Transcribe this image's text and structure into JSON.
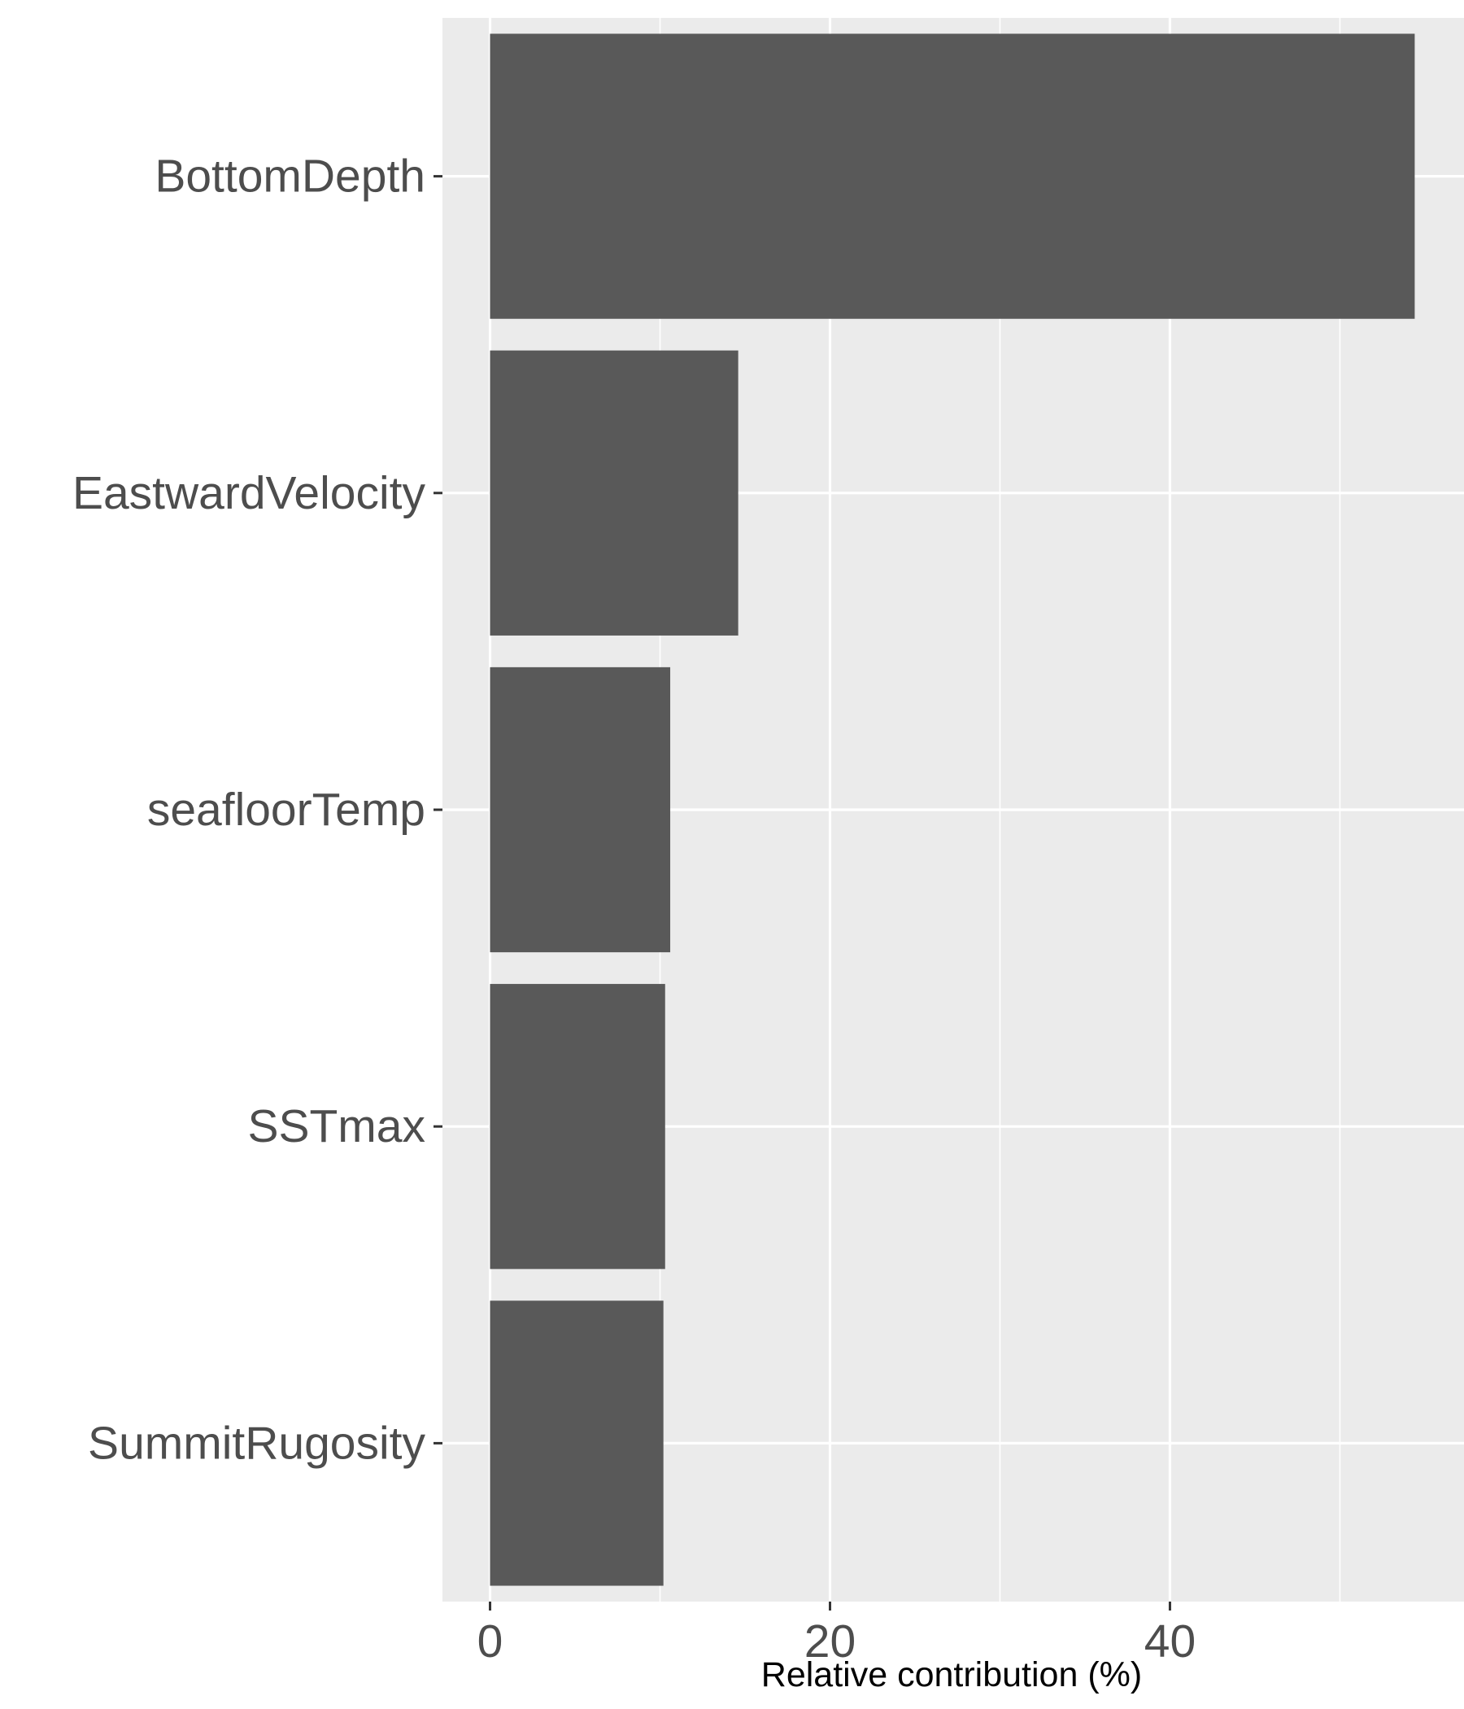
{
  "chart_data": {
    "type": "bar",
    "orientation": "horizontal",
    "title": "",
    "xlabel": "Relative contribution (%)",
    "ylabel": "",
    "categories": [
      "BottomDepth",
      "EastwardVelocity",
      "seafloorTemp",
      "SSTmax",
      "SummitRugosity"
    ],
    "values": [
      54.4,
      14.6,
      10.6,
      10.3,
      10.2
    ],
    "xlim": [
      -2.8,
      57.3
    ],
    "x_ticks": [
      0,
      20,
      40
    ],
    "x_tick_labels": [
      "0",
      "20",
      "40"
    ],
    "x_minor_ticks": [
      10,
      30,
      50
    ],
    "grid": true,
    "legend": "none",
    "colors": {
      "bar": "#595959",
      "panel": "#ebebeb",
      "grid": "#ffffff",
      "tick_text": "#4d4d4d",
      "tick_mark": "#333333",
      "axis_title": "#000000"
    }
  }
}
